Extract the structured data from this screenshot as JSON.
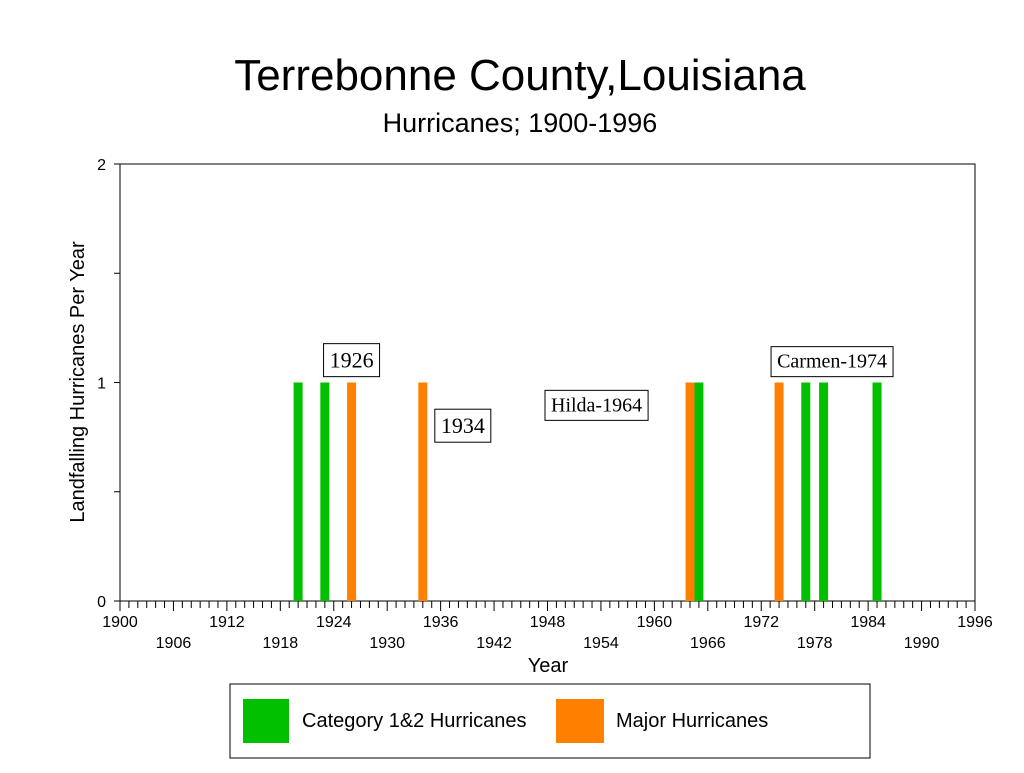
{
  "chart_data": {
    "type": "bar",
    "title": "Terrebonne County,Louisiana",
    "subtitle": "Hurricanes;  1900-1996",
    "xlabel": "Year",
    "ylabel": "Landfalling Hurricanes Per Year",
    "xlim": [
      1900,
      1996
    ],
    "ylim": [
      0,
      2
    ],
    "y_ticks": [
      0,
      1,
      2
    ],
    "y_tick_labels": [
      "0",
      "1",
      "2"
    ],
    "x_tick_labels_upper": [
      "1900",
      "1912",
      "1924",
      "1936",
      "1948",
      "1960",
      "1972",
      "1984",
      "1996"
    ],
    "x_tick_labels_lower": [
      "1906",
      "1918",
      "1930",
      "1942",
      "1954",
      "1966",
      "1978",
      "1990"
    ],
    "grid": false,
    "legend_position": "bottom",
    "series": [
      {
        "name": "Category 1&2 Hurricanes",
        "color": "#00c000",
        "x": [
          1920,
          1923,
          1965,
          1977,
          1979,
          1985
        ],
        "values": [
          1,
          1,
          1,
          1,
          1,
          1
        ]
      },
      {
        "name": "Major Hurricanes",
        "color": "#ff8000",
        "x": [
          1926,
          1934,
          1964,
          1974
        ],
        "values": [
          1,
          1,
          1,
          1
        ]
      }
    ],
    "annotations": [
      {
        "text": "1926",
        "x": 1926,
        "y": 1.1
      },
      {
        "text": "1934",
        "x": 1934,
        "y": 0.8
      },
      {
        "text": "Hilda-1964",
        "x": 1964,
        "y": 0.9
      },
      {
        "text": "Carmen-1974",
        "x": 1974,
        "y": 1.1
      }
    ]
  }
}
